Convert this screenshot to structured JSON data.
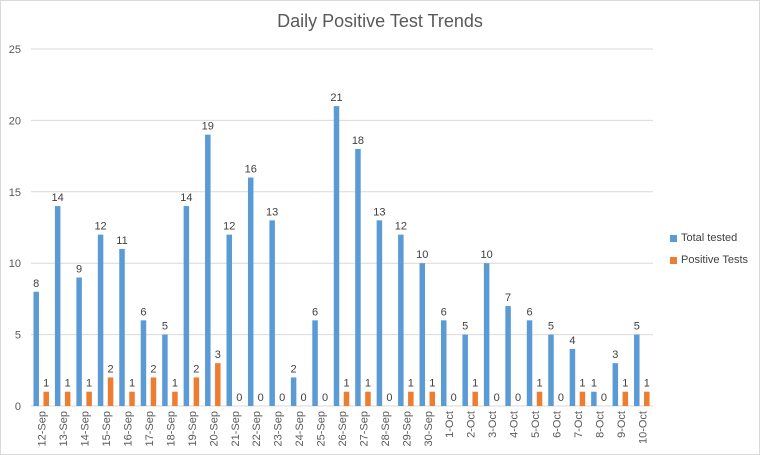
{
  "chart_data": {
    "type": "bar",
    "title": "Daily Positive Test Trends",
    "categories": [
      "12-Sep",
      "13-Sep",
      "14-Sep",
      "15-Sep",
      "16-Sep",
      "17-Sep",
      "18-Sep",
      "19-Sep",
      "20-Sep",
      "21-Sep",
      "22-Sep",
      "23-Sep",
      "24-Sep",
      "25-Sep",
      "26-Sep",
      "27-Sep",
      "28-Sep",
      "29-Sep",
      "30-Sep",
      "1-Oct",
      "2-Oct",
      "3-Oct",
      "4-Oct",
      "5-Oct",
      "6-Oct",
      "7-Oct",
      "8-Oct",
      "9-Oct",
      "10-Oct"
    ],
    "series": [
      {
        "name": "Total tested",
        "color": "#5b9bd5",
        "values": [
          8,
          14,
          9,
          12,
          11,
          6,
          5,
          14,
          19,
          12,
          16,
          13,
          2,
          6,
          21,
          18,
          13,
          12,
          10,
          6,
          5,
          10,
          7,
          6,
          5,
          4,
          1,
          3,
          5
        ]
      },
      {
        "name": "Positive Tests",
        "color": "#ed7d31",
        "values": [
          1,
          1,
          1,
          2,
          1,
          2,
          1,
          2,
          3,
          0,
          0,
          0,
          0,
          0,
          1,
          1,
          0,
          1,
          1,
          0,
          1,
          0,
          0,
          1,
          0,
          1,
          0,
          1,
          1
        ]
      }
    ],
    "ylim": [
      0,
      25
    ],
    "yticks": [
      0,
      5,
      10,
      15,
      20,
      25
    ],
    "xlabel": "",
    "ylabel": "",
    "grid": true,
    "legend_position": "right",
    "data_labels": true
  }
}
